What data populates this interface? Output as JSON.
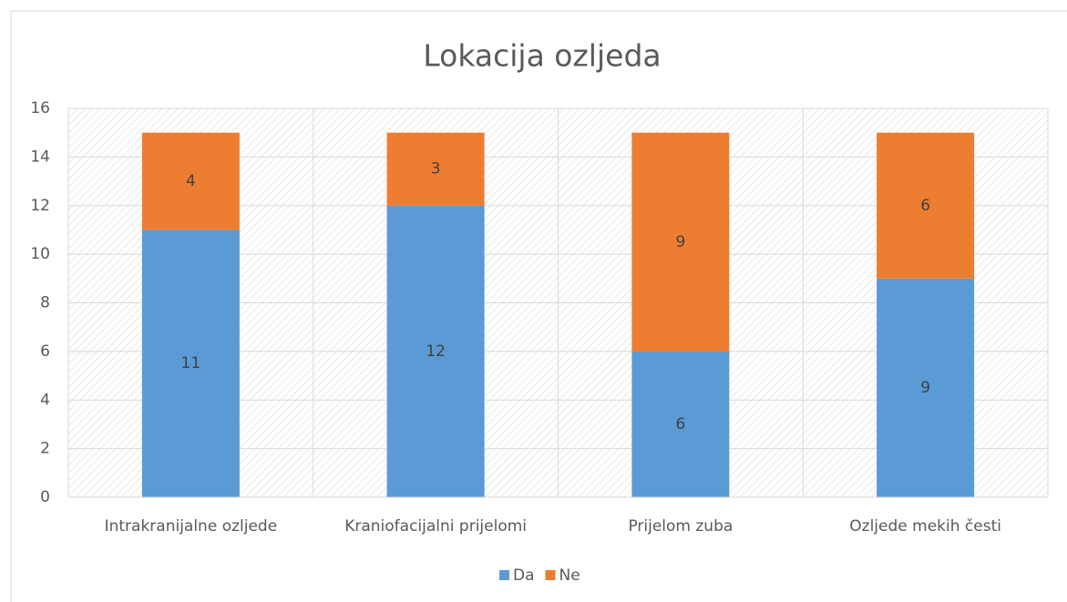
{
  "chart_data": {
    "type": "stacked_bar",
    "title": "Lokacija ozljeda",
    "categories": [
      "Intrakranijalne ozljede",
      "Kraniofacijalni prijelomi",
      "Prijelom zuba",
      "Ozljede mekih česti"
    ],
    "series": [
      {
        "name": "Da",
        "color": "#5b9bd5",
        "values": [
          11,
          12,
          6,
          9
        ]
      },
      {
        "name": "Ne",
        "color": "#ed7d31",
        "values": [
          4,
          3,
          9,
          6
        ]
      }
    ],
    "ylim": [
      0,
      16
    ],
    "yticks": [
      0,
      2,
      4,
      6,
      8,
      10,
      12,
      14,
      16
    ],
    "grid": true,
    "legend": "bottom"
  }
}
